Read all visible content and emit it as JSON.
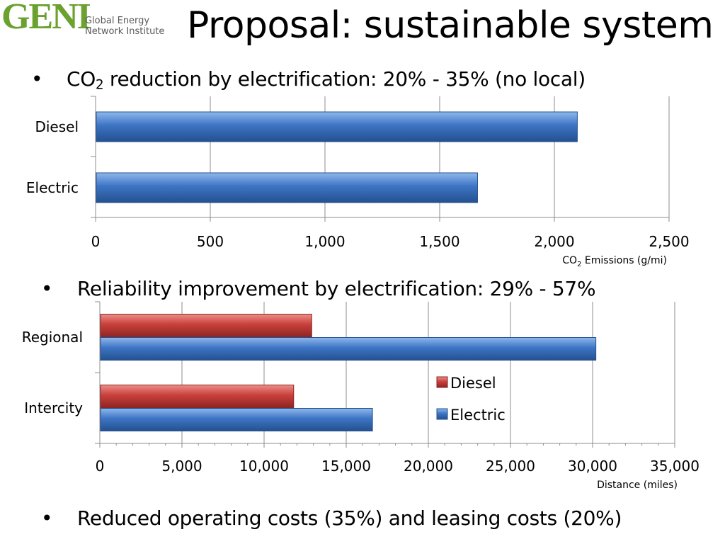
{
  "logo": {
    "mark": "GENI",
    "line1": "Global Energy",
    "line2": "Network Institute"
  },
  "title": "Proposal: sustainable system",
  "bullets": [
    {
      "symbol": "•",
      "pre": "CO",
      "sub": "2",
      "post": " reduction by electrification:  20% - 35% (no local)"
    },
    {
      "symbol": "•",
      "text": "Reliability improvement by electrification:  29% - 57%"
    },
    {
      "symbol": "•",
      "text": "Reduced operating costs (35%) and leasing costs (20%)"
    }
  ],
  "colors": {
    "electric": "#3d74c4",
    "electric_light": "#8fb8ec",
    "electric_dark": "#24518f",
    "diesel": "#c9403c",
    "diesel_light": "#ec8f88",
    "diesel_dark": "#8e2522",
    "grid": "#8c8c8c",
    "axis": "#8c8c8c"
  },
  "chart_data": [
    {
      "type": "bar",
      "orientation": "horizontal",
      "categories": [
        "Diesel",
        "Electric"
      ],
      "series": [
        {
          "values": [
            2100,
            1665
          ],
          "color": "electric"
        }
      ],
      "xlim": [
        0,
        2500
      ],
      "xticks": [
        0,
        500,
        1000,
        1500,
        2000,
        2500
      ],
      "xtick_labels": [
        "0",
        "500",
        "1,000",
        "1,500",
        "2,000",
        "2,500"
      ],
      "xlabel_pre": "CO",
      "xlabel_sub": "2",
      "xlabel_post": " Emissions (g/mi)",
      "grid": true,
      "legend": "none"
    },
    {
      "type": "bar",
      "orientation": "horizontal",
      "categories": [
        "Regional",
        "Intercity"
      ],
      "series": [
        {
          "name": "Diesel",
          "values": [
            12900,
            11800
          ],
          "color": "diesel"
        },
        {
          "name": "Electric",
          "values": [
            30200,
            16600
          ],
          "color": "electric"
        }
      ],
      "xlim": [
        0,
        35000
      ],
      "xticks": [
        0,
        5000,
        10000,
        15000,
        20000,
        25000,
        30000,
        35000
      ],
      "xtick_labels": [
        "0",
        "5,000",
        "10,000",
        "15,000",
        "20,000",
        "25,000",
        "30,000",
        "35,000"
      ],
      "xlabel": "Distance (miles)",
      "grid": true,
      "legend": "right"
    }
  ]
}
